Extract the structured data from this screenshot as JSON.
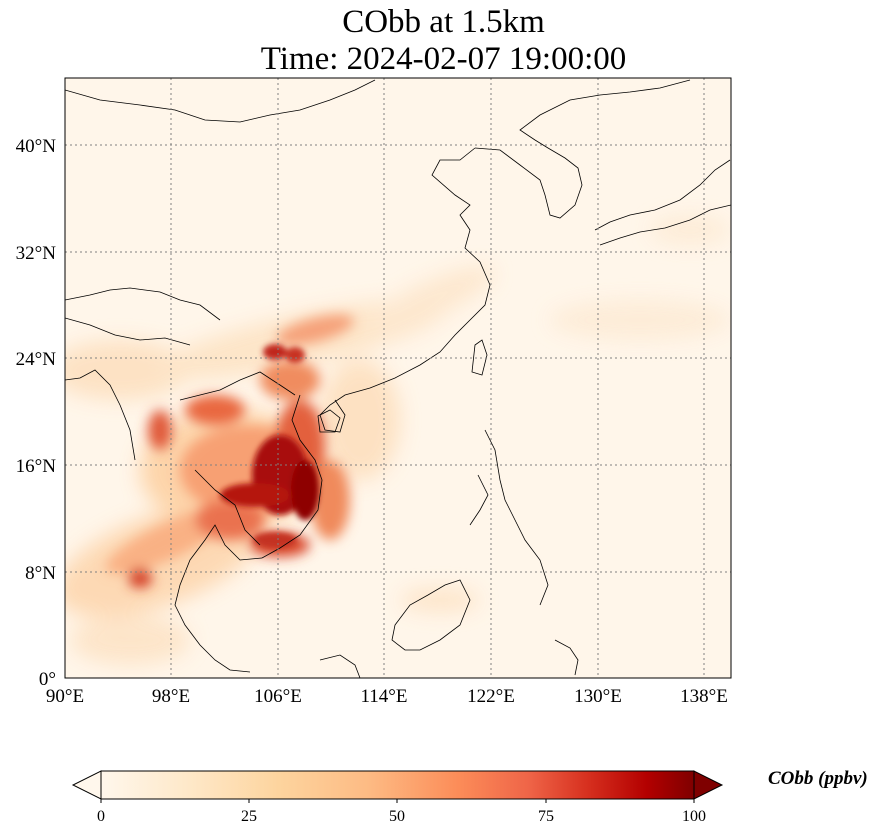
{
  "title_line1": "CObb at 1.5km",
  "title_line2": "Time: 2024-02-07 19:00:00",
  "lon_ticks": [
    "90°E",
    "98°E",
    "106°E",
    "114°E",
    "122°E",
    "130°E",
    "138°E"
  ],
  "lat_ticks": [
    "40°N",
    "32°N",
    "24°N",
    "16°N",
    "8°N",
    "0°"
  ],
  "colorbar": {
    "label": "CObb (ppbv)",
    "ticks": [
      "0",
      "25",
      "50",
      "75",
      "100"
    ],
    "range": [
      0,
      100
    ],
    "colormap": "OrRd",
    "extend": "both"
  },
  "map": {
    "lon_range": [
      90,
      140
    ],
    "lat_range": [
      0,
      45
    ],
    "gridlines": "dotted",
    "variable": "CObb",
    "level": "1.5km"
  }
}
